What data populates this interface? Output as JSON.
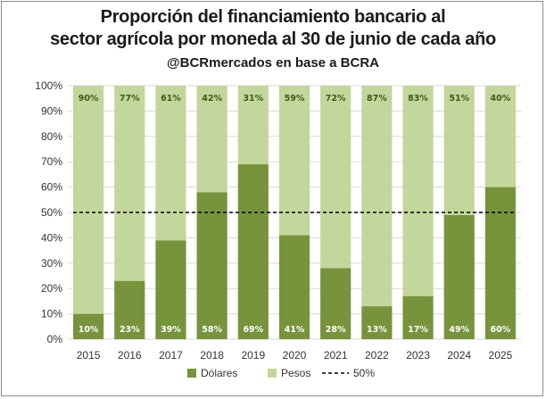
{
  "chart_data": {
    "type": "bar",
    "stacked": true,
    "title": "Proporción del financiamiento bancario al sector agrícola por moneda al 30 de junio de cada año",
    "title_line1": "Proporción del financiamiento bancario al",
    "title_line2": "sector agrícola por moneda al 30 de junio de cada año",
    "subtitle": "@BCRmercados en base a BCRA",
    "categories": [
      "2015",
      "2016",
      "2017",
      "2018",
      "2019",
      "2020",
      "2021",
      "2022",
      "2023",
      "2024",
      "2025"
    ],
    "series": [
      {
        "name": "Dólares",
        "color": "#77933c",
        "label_color": "#ffffff",
        "values": [
          10,
          23,
          39,
          58,
          69,
          41,
          28,
          13,
          17,
          49,
          60
        ],
        "labels": [
          "10%",
          "23%",
          "39%",
          "58%",
          "69%",
          "41%",
          "28%",
          "13%",
          "17%",
          "49%",
          "60%"
        ]
      },
      {
        "name": "Pesos",
        "color": "#c3d69b",
        "label_color": "#3d5a14",
        "values": [
          90,
          77,
          61,
          42,
          31,
          59,
          72,
          87,
          83,
          51,
          40
        ],
        "labels": [
          "90%",
          "77%",
          "61%",
          "42%",
          "31%",
          "59%",
          "72%",
          "87%",
          "83%",
          "51%",
          "40%"
        ]
      }
    ],
    "reference_line": {
      "name": "50%",
      "value": 50,
      "style": "dashed",
      "color": "#000000"
    },
    "ylim": [
      0,
      100
    ],
    "yticks": [
      0,
      10,
      20,
      30,
      40,
      50,
      60,
      70,
      80,
      90,
      100
    ],
    "ytick_labels": [
      "0%",
      "10%",
      "20%",
      "30%",
      "40%",
      "50%",
      "60%",
      "70%",
      "80%",
      "90%",
      "100%"
    ],
    "grid": true,
    "legend_position": "bottom",
    "xlabel": "",
    "ylabel": ""
  }
}
